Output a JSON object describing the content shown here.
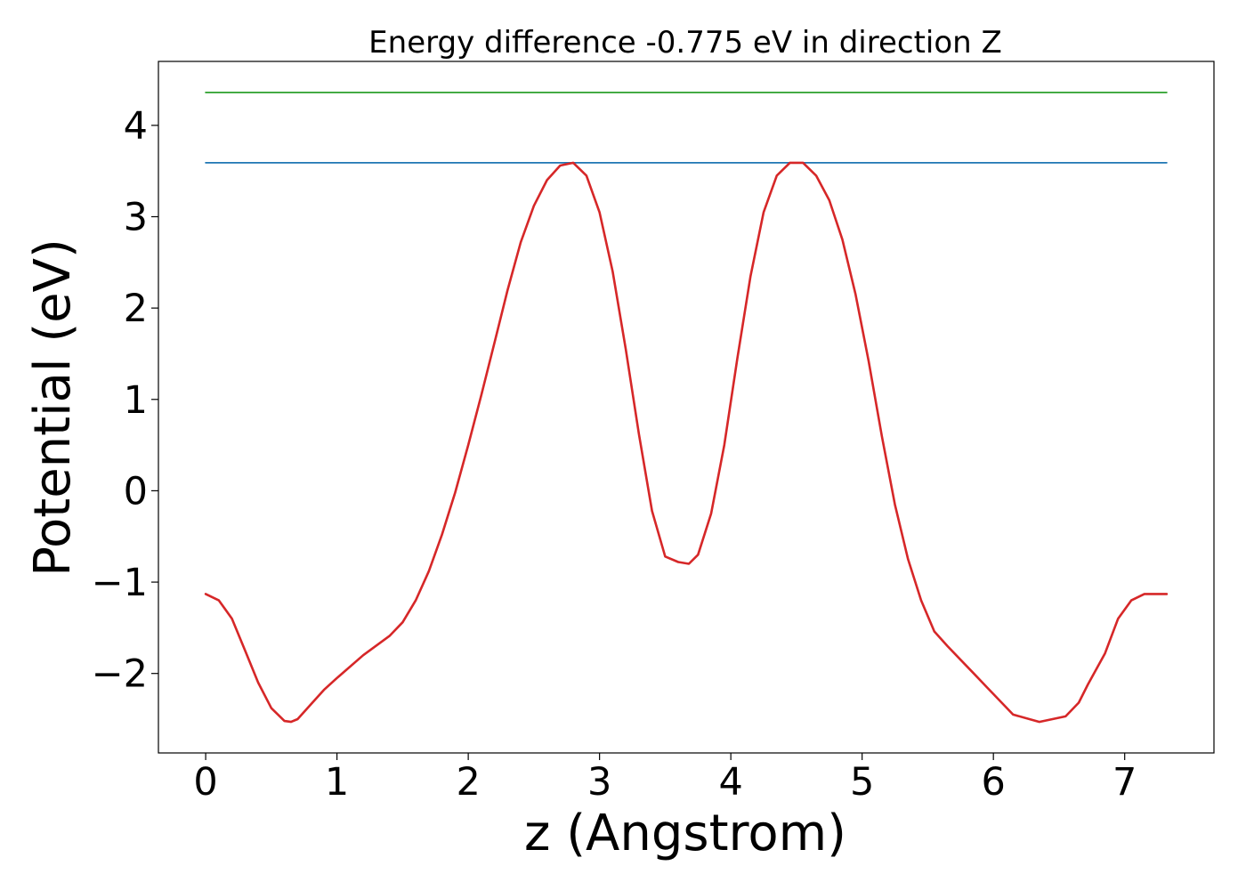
{
  "chart_data": {
    "type": "line",
    "title": "Energy difference -0.775 eV in direction Z",
    "xlabel": "z (Angstrom)",
    "ylabel": "Potential (eV)",
    "xlim": [
      -0.36,
      7.68
    ],
    "ylim": [
      -2.87,
      4.7
    ],
    "xticks": [
      0,
      1,
      2,
      3,
      4,
      5,
      6,
      7
    ],
    "yticks": [
      -2,
      -1,
      0,
      1,
      2,
      3,
      4
    ],
    "ytick_labels": [
      "−2",
      "−1",
      "0",
      "1",
      "2",
      "3",
      "4"
    ],
    "grid": false,
    "series": [
      {
        "color": "#2ca02c",
        "x": [
          0,
          7.32
        ],
        "y": [
          4.36,
          4.36
        ]
      },
      {
        "color": "#1f77b4",
        "x": [
          0,
          7.32
        ],
        "y": [
          3.59,
          3.59
        ]
      },
      {
        "color": "#d62728",
        "x": [
          0,
          0.1,
          0.2,
          0.3,
          0.4,
          0.5,
          0.6,
          0.65,
          0.7,
          0.8,
          0.9,
          1.0,
          1.2,
          1.4,
          1.5,
          1.6,
          1.7,
          1.8,
          1.9,
          2.0,
          2.1,
          2.2,
          2.3,
          2.4,
          2.5,
          2.6,
          2.7,
          2.8,
          2.9,
          3.0,
          3.1,
          3.2,
          3.3,
          3.4,
          3.5,
          3.6,
          3.68,
          3.75,
          3.85,
          3.95,
          4.05,
          4.15,
          4.25,
          4.35,
          4.45,
          4.55,
          4.65,
          4.75,
          4.85,
          4.95,
          5.05,
          5.15,
          5.25,
          5.35,
          5.45,
          5.55,
          5.65,
          5.75,
          5.85,
          5.95,
          6.15,
          6.35,
          6.55,
          6.65,
          6.72,
          6.85,
          6.95,
          7.05,
          7.15,
          7.25,
          7.32
        ],
        "y": [
          -1.13,
          -1.2,
          -1.4,
          -1.75,
          -2.1,
          -2.38,
          -2.52,
          -2.53,
          -2.5,
          -2.34,
          -2.18,
          -2.05,
          -1.8,
          -1.59,
          -1.44,
          -1.2,
          -0.88,
          -0.48,
          -0.02,
          0.5,
          1.05,
          1.62,
          2.2,
          2.72,
          3.12,
          3.4,
          3.56,
          3.59,
          3.45,
          3.05,
          2.4,
          1.55,
          0.62,
          -0.22,
          -0.72,
          -0.78,
          -0.8,
          -0.7,
          -0.25,
          0.5,
          1.45,
          2.35,
          3.05,
          3.45,
          3.59,
          3.59,
          3.45,
          3.18,
          2.75,
          2.15,
          1.42,
          0.6,
          -0.15,
          -0.75,
          -1.2,
          -1.54,
          -1.7,
          -1.85,
          -2.0,
          -2.15,
          -2.45,
          -2.53,
          -2.47,
          -2.32,
          -2.12,
          -1.78,
          -1.4,
          -1.2,
          -1.13,
          -1.13,
          -1.13
        ]
      }
    ]
  }
}
